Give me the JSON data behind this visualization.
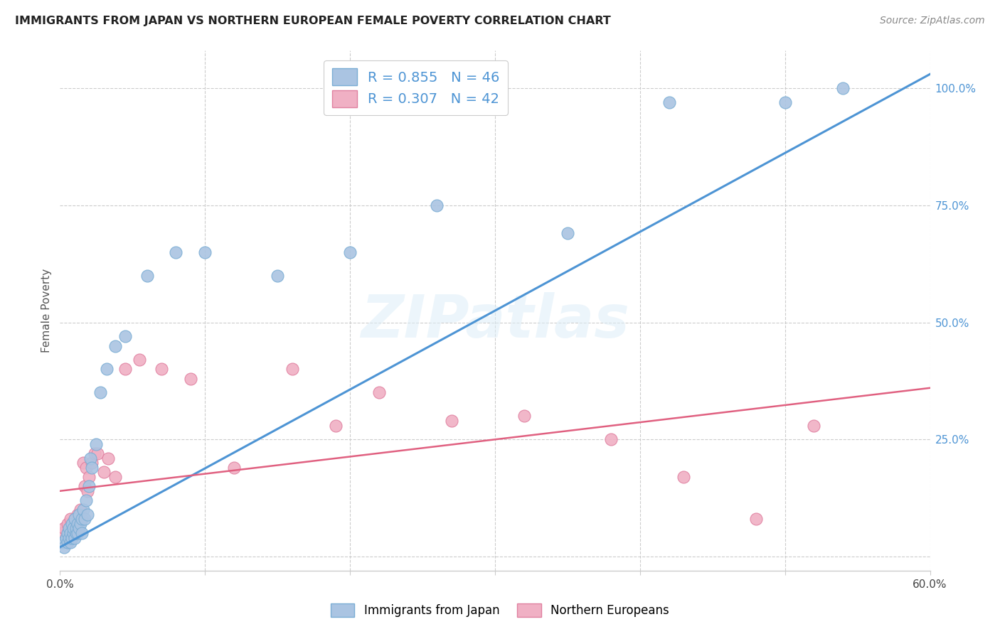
{
  "title": "IMMIGRANTS FROM JAPAN VS NORTHERN EUROPEAN FEMALE POVERTY CORRELATION CHART",
  "source": "Source: ZipAtlas.com",
  "ylabel": "Female Poverty",
  "xlim": [
    0.0,
    0.6
  ],
  "ylim": [
    -0.03,
    1.08
  ],
  "japan_color": "#aac4e2",
  "japan_edge": "#7aadd4",
  "japan_line_color": "#4d94d4",
  "northern_color": "#f0b0c4",
  "northern_edge": "#e080a0",
  "northern_line_color": "#e06080",
  "R_japan": 0.855,
  "N_japan": 46,
  "R_northern": 0.307,
  "N_northern": 42,
  "watermark": "ZIPatlas",
  "japan_line_x": [
    0.0,
    0.6
  ],
  "japan_line_y": [
    0.02,
    1.03
  ],
  "northern_line_x": [
    0.0,
    0.6
  ],
  "northern_line_y": [
    0.14,
    0.36
  ],
  "japan_scatter_x": [
    0.002,
    0.003,
    0.004,
    0.005,
    0.005,
    0.006,
    0.006,
    0.007,
    0.007,
    0.008,
    0.008,
    0.009,
    0.009,
    0.01,
    0.01,
    0.011,
    0.011,
    0.012,
    0.012,
    0.013,
    0.013,
    0.014,
    0.015,
    0.015,
    0.016,
    0.017,
    0.018,
    0.019,
    0.02,
    0.021,
    0.022,
    0.025,
    0.028,
    0.032,
    0.038,
    0.045,
    0.06,
    0.08,
    0.1,
    0.15,
    0.2,
    0.26,
    0.35,
    0.42,
    0.5,
    0.54
  ],
  "japan_scatter_y": [
    0.03,
    0.02,
    0.04,
    0.03,
    0.05,
    0.04,
    0.06,
    0.03,
    0.05,
    0.04,
    0.07,
    0.05,
    0.06,
    0.04,
    0.08,
    0.05,
    0.06,
    0.05,
    0.07,
    0.06,
    0.09,
    0.07,
    0.05,
    0.08,
    0.1,
    0.08,
    0.12,
    0.09,
    0.15,
    0.21,
    0.19,
    0.24,
    0.35,
    0.4,
    0.45,
    0.47,
    0.6,
    0.65,
    0.65,
    0.6,
    0.65,
    0.75,
    0.69,
    0.97,
    0.97,
    1.0
  ],
  "northern_scatter_x": [
    0.002,
    0.003,
    0.004,
    0.005,
    0.005,
    0.006,
    0.007,
    0.007,
    0.008,
    0.008,
    0.009,
    0.01,
    0.011,
    0.012,
    0.013,
    0.014,
    0.015,
    0.016,
    0.017,
    0.018,
    0.019,
    0.02,
    0.022,
    0.024,
    0.026,
    0.03,
    0.033,
    0.038,
    0.045,
    0.055,
    0.07,
    0.09,
    0.12,
    0.16,
    0.19,
    0.22,
    0.27,
    0.32,
    0.38,
    0.43,
    0.48,
    0.52
  ],
  "northern_scatter_y": [
    0.05,
    0.06,
    0.04,
    0.07,
    0.05,
    0.06,
    0.04,
    0.08,
    0.05,
    0.07,
    0.06,
    0.08,
    0.05,
    0.09,
    0.07,
    0.1,
    0.08,
    0.2,
    0.15,
    0.19,
    0.14,
    0.17,
    0.2,
    0.22,
    0.22,
    0.18,
    0.21,
    0.17,
    0.4,
    0.42,
    0.4,
    0.38,
    0.19,
    0.4,
    0.28,
    0.35,
    0.29,
    0.3,
    0.25,
    0.17,
    0.08,
    0.28
  ]
}
